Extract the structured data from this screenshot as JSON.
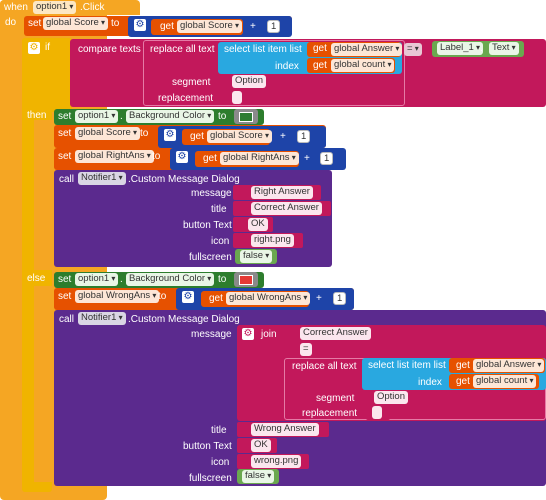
{
  "event": {
    "when": "when",
    "component": "option1",
    "event": ".Click",
    "do": "do"
  },
  "set1": {
    "set": "set",
    "var": "global Score",
    "to": "to",
    "get": "get",
    "get_var": "global Score",
    "op": "+",
    "num": "1"
  },
  "if": {
    "if": "if",
    "then": "then",
    "else": "else",
    "compare": "compare texts",
    "eq": "=",
    "replace": "replace all text",
    "select": "select list item  list",
    "index": "index",
    "get": "get",
    "list_var": "global Answer",
    "index_var": "global count",
    "segment": "segment",
    "seg_val": "Option",
    "replacement": "replacement",
    "label": "Label_1",
    "label_prop": "Text"
  },
  "then": {
    "bg_set": "set",
    "bg_comp": "option1",
    "bg_prop": "Background Color",
    "to": "to",
    "score_set": "set",
    "score_var": "global Score",
    "score_get": "global Score",
    "op": "+",
    "num": "1",
    "right_set": "set",
    "right_var": "global RightAns",
    "right_get": "global RightAns",
    "get": "get",
    "call": "call",
    "notifier": "Notifier1",
    "method": ".Custom Message Dialog",
    "message": "message",
    "msg_val": "Right Answer",
    "title": "title",
    "title_val": "Correct Answer",
    "button_text": "button Text",
    "button_val": "OK",
    "icon": "icon",
    "icon_val": "right.png",
    "fullscreen": "fullscreen",
    "fs_val": "false"
  },
  "else": {
    "bg_set": "set",
    "bg_comp": "option1",
    "bg_prop": "Background Color",
    "to": "to",
    "wrong_set": "set",
    "wrong_var": "global WrongAns",
    "wrong_get": "global WrongAns",
    "get": "get",
    "op": "+",
    "num": "1",
    "call": "call",
    "notifier": "Notifier1",
    "method": ".Custom Message Dialog",
    "message": "message",
    "join": "join",
    "join1": "Correct Answer",
    "join2": "=",
    "replace": "replace all text",
    "select": "select list item  list",
    "index": "index",
    "list_var": "global Answer",
    "index_var": "global count",
    "segment": "segment",
    "seg_val": "Option",
    "replacement": "replacement",
    "title": "title",
    "title_val": "Wrong  Answer",
    "button_text": "button Text",
    "button_val": "OK",
    "icon": "icon",
    "icon_val": "wrong.png",
    "fullscreen": "fullscreen",
    "fs_val": "false"
  },
  "colors": {
    "event": "#f5a623",
    "text": "#c2185b",
    "variable": "#e65100",
    "math": "#1e44a8",
    "color": "#2d7d2d",
    "list": "#29a8e0",
    "component": "#5b2a8e",
    "green_swatch": "#2e7d32",
    "red_swatch": "#e53935"
  }
}
